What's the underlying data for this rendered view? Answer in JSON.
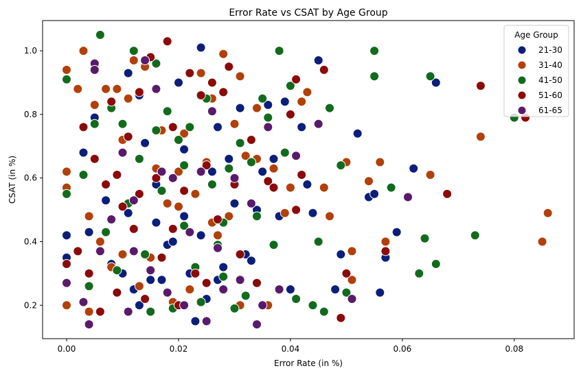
{
  "chart_data": {
    "type": "scatter",
    "title": "Error Rate vs CSAT by Age Group",
    "xlabel": "Error Rate (in %)",
    "ylabel": "CSAT (in %)",
    "xlim": [
      -0.0043,
      0.0907
    ],
    "ylim": [
      0.095,
      1.095
    ],
    "xticks": [
      "0.00",
      "0.02",
      "0.04",
      "0.06",
      "0.08"
    ],
    "xtick_values": [
      0.0,
      0.02,
      0.04,
      0.06,
      0.08
    ],
    "yticks": [
      "0.2",
      "0.4",
      "0.6",
      "0.8",
      "1.0"
    ],
    "ytick_values": [
      0.2,
      0.4,
      0.6,
      0.8,
      1.0
    ],
    "grid": false,
    "legend": {
      "title": "Age Group",
      "placement": "top-right"
    },
    "series": [
      {
        "name": "21-30",
        "color": "#0b1f7a",
        "points": [
          [
            0.0,
            0.35
          ],
          [
            0.0,
            0.42
          ],
          [
            0.003,
            0.68
          ],
          [
            0.004,
            0.43
          ],
          [
            0.005,
            0.79
          ],
          [
            0.007,
            0.53
          ],
          [
            0.008,
            0.33
          ],
          [
            0.01,
            0.3
          ],
          [
            0.011,
            0.93
          ],
          [
            0.012,
            0.25
          ],
          [
            0.013,
            0.2
          ],
          [
            0.014,
            0.71
          ],
          [
            0.016,
            0.58
          ],
          [
            0.017,
            0.28
          ],
          [
            0.018,
            0.39
          ],
          [
            0.02,
            0.9
          ],
          [
            0.021,
            0.48
          ],
          [
            0.022,
            0.3
          ],
          [
            0.023,
            0.15
          ],
          [
            0.024,
            1.01
          ],
          [
            0.025,
            0.22
          ],
          [
            0.026,
            0.62
          ],
          [
            0.027,
            0.28
          ],
          [
            0.028,
            0.32
          ],
          [
            0.029,
            0.66
          ],
          [
            0.03,
            0.52
          ],
          [
            0.031,
            0.82
          ],
          [
            0.032,
            0.36
          ],
          [
            0.033,
            0.34
          ],
          [
            0.034,
            0.5
          ],
          [
            0.035,
            0.62
          ],
          [
            0.036,
            0.83
          ],
          [
            0.038,
            0.48
          ],
          [
            0.039,
            0.84
          ],
          [
            0.04,
            0.25
          ],
          [
            0.042,
            0.76
          ],
          [
            0.043,
            0.58
          ],
          [
            0.044,
            0.49
          ],
          [
            0.045,
            0.97
          ],
          [
            0.045,
            0.77
          ],
          [
            0.048,
            0.25
          ],
          [
            0.049,
            0.36
          ],
          [
            0.052,
            0.74
          ],
          [
            0.054,
            0.54
          ],
          [
            0.055,
            0.55
          ],
          [
            0.056,
            0.24
          ],
          [
            0.057,
            0.35
          ],
          [
            0.059,
            0.43
          ],
          [
            0.062,
            0.63
          ],
          [
            0.066,
            0.9
          ],
          [
            0.037,
            0.66
          ],
          [
            0.027,
            0.76
          ],
          [
            0.019,
            0.4
          ],
          [
            0.009,
            0.61
          ],
          [
            0.015,
            0.28
          ],
          [
            0.013,
            0.86
          ],
          [
            0.021,
            0.69
          ],
          [
            0.024,
            0.42
          ],
          [
            0.016,
            0.46
          ],
          [
            0.011,
            0.49
          ]
        ]
      },
      {
        "name": "31-40",
        "color": "#b2400a",
        "points": [
          [
            0.0,
            0.94
          ],
          [
            0.0,
            0.62
          ],
          [
            0.0,
            0.57
          ],
          [
            0.0,
            0.2
          ],
          [
            0.002,
            0.88
          ],
          [
            0.003,
            1.0
          ],
          [
            0.004,
            0.18
          ],
          [
            0.004,
            0.48
          ],
          [
            0.005,
            0.83
          ],
          [
            0.006,
            0.4
          ],
          [
            0.007,
            0.88
          ],
          [
            0.008,
            0.32
          ],
          [
            0.009,
            0.88
          ],
          [
            0.01,
            0.72
          ],
          [
            0.011,
            0.85
          ],
          [
            0.012,
            0.97
          ],
          [
            0.013,
            0.26
          ],
          [
            0.014,
            0.95
          ],
          [
            0.015,
            0.35
          ],
          [
            0.016,
            0.63
          ],
          [
            0.017,
            0.75
          ],
          [
            0.018,
            0.52
          ],
          [
            0.019,
            0.21
          ],
          [
            0.02,
            0.62
          ],
          [
            0.021,
            0.74
          ],
          [
            0.022,
            0.25
          ],
          [
            0.023,
            0.55
          ],
          [
            0.024,
            0.93
          ],
          [
            0.025,
            0.65
          ],
          [
            0.026,
            0.85
          ],
          [
            0.027,
            0.42
          ],
          [
            0.028,
            0.99
          ],
          [
            0.029,
            0.48
          ],
          [
            0.03,
            0.77
          ],
          [
            0.031,
            0.2
          ],
          [
            0.031,
            0.92
          ],
          [
            0.032,
            0.67
          ],
          [
            0.034,
            0.82
          ],
          [
            0.034,
            0.66
          ],
          [
            0.036,
            0.2
          ],
          [
            0.037,
            0.63
          ],
          [
            0.039,
            0.49
          ],
          [
            0.04,
            0.57
          ],
          [
            0.042,
            0.84
          ],
          [
            0.043,
            0.87
          ],
          [
            0.046,
            0.57
          ],
          [
            0.047,
            0.48
          ],
          [
            0.05,
            0.65
          ],
          [
            0.051,
            0.37
          ],
          [
            0.051,
            0.28
          ],
          [
            0.054,
            0.59
          ],
          [
            0.056,
            0.65
          ],
          [
            0.057,
            0.4
          ],
          [
            0.065,
            0.61
          ],
          [
            0.074,
            0.73
          ],
          [
            0.085,
            0.4
          ],
          [
            0.086,
            0.49
          ],
          [
            0.01,
            0.36
          ],
          [
            0.02,
            0.51
          ],
          [
            0.026,
            0.46
          ]
        ]
      },
      {
        "name": "41-50",
        "color": "#126b1c",
        "points": [
          [
            0.0,
            0.91
          ],
          [
            0.0,
            0.55
          ],
          [
            0.003,
            0.61
          ],
          [
            0.004,
            0.26
          ],
          [
            0.005,
            0.77
          ],
          [
            0.006,
            1.05
          ],
          [
            0.007,
            0.43
          ],
          [
            0.008,
            0.82
          ],
          [
            0.009,
            0.31
          ],
          [
            0.01,
            0.77
          ],
          [
            0.011,
            0.52
          ],
          [
            0.012,
            1.0
          ],
          [
            0.013,
            0.66
          ],
          [
            0.014,
            0.36
          ],
          [
            0.015,
            0.18
          ],
          [
            0.016,
            0.96
          ],
          [
            0.017,
            0.56
          ],
          [
            0.018,
            0.81
          ],
          [
            0.019,
            0.19
          ],
          [
            0.02,
            0.72
          ],
          [
            0.021,
            0.45
          ],
          [
            0.022,
            0.76
          ],
          [
            0.023,
            0.32
          ],
          [
            0.024,
            0.21
          ],
          [
            0.025,
            0.85
          ],
          [
            0.026,
            0.58
          ],
          [
            0.027,
            0.39
          ],
          [
            0.028,
            0.29
          ],
          [
            0.029,
            0.63
          ],
          [
            0.03,
            0.19
          ],
          [
            0.031,
            0.71
          ],
          [
            0.032,
            0.23
          ],
          [
            0.033,
            0.65
          ],
          [
            0.034,
            0.48
          ],
          [
            0.035,
            0.85
          ],
          [
            0.036,
            0.79
          ],
          [
            0.037,
            0.39
          ],
          [
            0.038,
            1.0
          ],
          [
            0.039,
            0.68
          ],
          [
            0.04,
            0.89
          ],
          [
            0.041,
            0.22
          ],
          [
            0.044,
            0.2
          ],
          [
            0.045,
            0.4
          ],
          [
            0.047,
            0.82
          ],
          [
            0.049,
            0.64
          ],
          [
            0.05,
            0.24
          ],
          [
            0.055,
            1.0
          ],
          [
            0.055,
            0.92
          ],
          [
            0.058,
            0.57
          ],
          [
            0.063,
            0.3
          ],
          [
            0.064,
            0.41
          ],
          [
            0.065,
            0.92
          ],
          [
            0.066,
            0.33
          ],
          [
            0.073,
            0.42
          ],
          [
            0.08,
            0.79
          ],
          [
            0.046,
            0.18
          ],
          [
            0.016,
            0.75
          ],
          [
            0.021,
            0.64
          ],
          [
            0.028,
            0.46
          ]
        ]
      },
      {
        "name": "51-60",
        "color": "#8b0a0a",
        "points": [
          [
            0.0,
            0.33
          ],
          [
            0.002,
            0.37
          ],
          [
            0.003,
            0.76
          ],
          [
            0.004,
            0.3
          ],
          [
            0.005,
            0.66
          ],
          [
            0.006,
            0.18
          ],
          [
            0.007,
            0.58
          ],
          [
            0.008,
            0.84
          ],
          [
            0.009,
            0.61
          ],
          [
            0.01,
            0.51
          ],
          [
            0.011,
            0.73
          ],
          [
            0.012,
            0.44
          ],
          [
            0.013,
            0.87
          ],
          [
            0.014,
            0.22
          ],
          [
            0.015,
            0.98
          ],
          [
            0.016,
            0.6
          ],
          [
            0.017,
            0.35
          ],
          [
            0.018,
            1.03
          ],
          [
            0.019,
            0.76
          ],
          [
            0.02,
            0.2
          ],
          [
            0.021,
            0.56
          ],
          [
            0.022,
            0.93
          ],
          [
            0.023,
            0.3
          ],
          [
            0.024,
            0.86
          ],
          [
            0.025,
            0.64
          ],
          [
            0.026,
            0.9
          ],
          [
            0.027,
            0.47
          ],
          [
            0.028,
            0.87
          ],
          [
            0.029,
            0.95
          ],
          [
            0.03,
            0.58
          ],
          [
            0.031,
            0.36
          ],
          [
            0.033,
            0.72
          ],
          [
            0.034,
            0.27
          ],
          [
            0.036,
            0.59
          ],
          [
            0.037,
            0.57
          ],
          [
            0.04,
            0.8
          ],
          [
            0.041,
            0.91
          ],
          [
            0.041,
            0.5
          ],
          [
            0.042,
            0.61
          ],
          [
            0.046,
            0.94
          ],
          [
            0.049,
            0.16
          ],
          [
            0.05,
            0.3
          ],
          [
            0.057,
            0.37
          ],
          [
            0.068,
            0.55
          ],
          [
            0.074,
            0.89
          ],
          [
            0.082,
            0.79
          ],
          [
            0.019,
            0.44
          ],
          [
            0.013,
            0.55
          ],
          [
            0.025,
            0.27
          ],
          [
            0.009,
            0.24
          ]
        ]
      },
      {
        "name": "61-65",
        "color": "#5a1a6b",
        "points": [
          [
            0.0,
            0.27
          ],
          [
            0.003,
            0.21
          ],
          [
            0.004,
            0.14
          ],
          [
            0.005,
            0.96
          ],
          [
            0.005,
            0.94
          ],
          [
            0.006,
            0.37
          ],
          [
            0.008,
            0.47
          ],
          [
            0.01,
            0.68
          ],
          [
            0.011,
            0.18
          ],
          [
            0.012,
            0.37
          ],
          [
            0.014,
            0.97
          ],
          [
            0.015,
            0.31
          ],
          [
            0.016,
            0.88
          ],
          [
            0.017,
            0.62
          ],
          [
            0.019,
            0.6
          ],
          [
            0.021,
            0.2
          ],
          [
            0.022,
            0.43
          ],
          [
            0.024,
            0.62
          ],
          [
            0.025,
            0.15
          ],
          [
            0.026,
            0.81
          ],
          [
            0.028,
            0.25
          ],
          [
            0.03,
            0.6
          ],
          [
            0.031,
            0.28
          ],
          [
            0.033,
            0.52
          ],
          [
            0.034,
            0.14
          ],
          [
            0.035,
            0.2
          ],
          [
            0.036,
            0.76
          ],
          [
            0.038,
            0.25
          ],
          [
            0.041,
            0.67
          ],
          [
            0.045,
            0.77
          ],
          [
            0.051,
            0.22
          ],
          [
            0.061,
            0.54
          ],
          [
            0.018,
            0.24
          ],
          [
            0.027,
            0.38
          ],
          [
            0.012,
            0.53
          ]
        ]
      }
    ]
  }
}
